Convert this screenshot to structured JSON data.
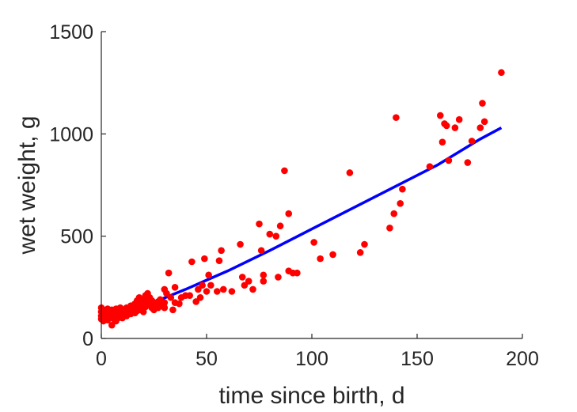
{
  "chart_data": {
    "type": "scatter",
    "xlabel": "time since birth, d",
    "ylabel": "wet weight, g",
    "xlim": [
      0,
      200
    ],
    "ylim": [
      0,
      1500
    ],
    "xticks": [
      0,
      50,
      100,
      150,
      200
    ],
    "yticks": [
      0,
      500,
      1000,
      1500
    ],
    "xtick_labels": [
      "0",
      "50",
      "100",
      "150",
      "200"
    ],
    "ytick_labels": [
      "0",
      "500",
      "1000",
      "1500"
    ],
    "grid": false,
    "box": "open",
    "series": [
      {
        "kind": "points",
        "color": "#ff0000",
        "points": [
          [
            0,
            150
          ],
          [
            0,
            130
          ],
          [
            0,
            110
          ],
          [
            0,
            95
          ],
          [
            1,
            140
          ],
          [
            1,
            120
          ],
          [
            1,
            100
          ],
          [
            1,
            85
          ],
          [
            2,
            135
          ],
          [
            2,
            115
          ],
          [
            2,
            95
          ],
          [
            3,
            145
          ],
          [
            3,
            125
          ],
          [
            3,
            105
          ],
          [
            3,
            90
          ],
          [
            4,
            130
          ],
          [
            4,
            110
          ],
          [
            4,
            100
          ],
          [
            5,
            140
          ],
          [
            5,
            120
          ],
          [
            5,
            105
          ],
          [
            5,
            65
          ],
          [
            6,
            130
          ],
          [
            6,
            115
          ],
          [
            6,
            95
          ],
          [
            7,
            145
          ],
          [
            7,
            125
          ],
          [
            7,
            110
          ],
          [
            7,
            85
          ],
          [
            8,
            135
          ],
          [
            8,
            115
          ],
          [
            8,
            100
          ],
          [
            9,
            150
          ],
          [
            9,
            130
          ],
          [
            9,
            110
          ],
          [
            10,
            140
          ],
          [
            10,
            120
          ],
          [
            10,
            100
          ],
          [
            11,
            135
          ],
          [
            11,
            115
          ],
          [
            12,
            150
          ],
          [
            12,
            125
          ],
          [
            12,
            110
          ],
          [
            13,
            145
          ],
          [
            13,
            130
          ],
          [
            14,
            160
          ],
          [
            14,
            135
          ],
          [
            14,
            120
          ],
          [
            15,
            155
          ],
          [
            15,
            140
          ],
          [
            16,
            170
          ],
          [
            16,
            145
          ],
          [
            16,
            125
          ],
          [
            17,
            185
          ],
          [
            17,
            160
          ],
          [
            17,
            135
          ],
          [
            18,
            200
          ],
          [
            18,
            165
          ],
          [
            18,
            140
          ],
          [
            19,
            175
          ],
          [
            19,
            150
          ],
          [
            20,
            190
          ],
          [
            20,
            160
          ],
          [
            20,
            130
          ],
          [
            21,
            210
          ],
          [
            21,
            180
          ],
          [
            21,
            155
          ],
          [
            22,
            220
          ],
          [
            22,
            190
          ],
          [
            22,
            165
          ],
          [
            23,
            200
          ],
          [
            23,
            170
          ],
          [
            24,
            185
          ],
          [
            24,
            150
          ],
          [
            25,
            175
          ],
          [
            25,
            140
          ],
          [
            26,
            160
          ],
          [
            27,
            180
          ],
          [
            27,
            150
          ],
          [
            28,
            190
          ],
          [
            29,
            160
          ],
          [
            30,
            240
          ],
          [
            30,
            175
          ],
          [
            30,
            150
          ],
          [
            31,
            220
          ],
          [
            32,
            320
          ],
          [
            33,
            200
          ],
          [
            34,
            140
          ],
          [
            35,
            175
          ],
          [
            35,
            250
          ],
          [
            37,
            170
          ],
          [
            38,
            200
          ],
          [
            40,
            210
          ],
          [
            42,
            210
          ],
          [
            43,
            375
          ],
          [
            45,
            180
          ],
          [
            46,
            240
          ],
          [
            47,
            200
          ],
          [
            48,
            260
          ],
          [
            49,
            390
          ],
          [
            50,
            230
          ],
          [
            51,
            310
          ],
          [
            52,
            260
          ],
          [
            55,
            230
          ],
          [
            56,
            380
          ],
          [
            57,
            430
          ],
          [
            58,
            240
          ],
          [
            62,
            230
          ],
          [
            66,
            460
          ],
          [
            67,
            300
          ],
          [
            68,
            260
          ],
          [
            70,
            280
          ],
          [
            72,
            240
          ],
          [
            75,
            560
          ],
          [
            76,
            430
          ],
          [
            77,
            310
          ],
          [
            77,
            280
          ],
          [
            80,
            510
          ],
          [
            83,
            500
          ],
          [
            84,
            300
          ],
          [
            85,
            550
          ],
          [
            87,
            820
          ],
          [
            89,
            610
          ],
          [
            89,
            330
          ],
          [
            91,
            320
          ],
          [
            93,
            320
          ],
          [
            101,
            470
          ],
          [
            104,
            390
          ],
          [
            110,
            410
          ],
          [
            118,
            810
          ],
          [
            123,
            420
          ],
          [
            125,
            460
          ],
          [
            137,
            540
          ],
          [
            139,
            610
          ],
          [
            140,
            1080
          ],
          [
            142,
            660
          ],
          [
            143,
            730
          ],
          [
            156,
            840
          ],
          [
            161,
            1090
          ],
          [
            162,
            960
          ],
          [
            163,
            1050
          ],
          [
            164,
            1040
          ],
          [
            165,
            870
          ],
          [
            168,
            1030
          ],
          [
            170,
            1070
          ],
          [
            174,
            860
          ],
          [
            176,
            965
          ],
          [
            180,
            1030
          ],
          [
            181,
            1150
          ],
          [
            182,
            1060
          ],
          [
            190,
            1300
          ]
        ]
      },
      {
        "kind": "fit-line",
        "color": "#0000ff",
        "x": [
          0,
          10,
          20,
          30,
          40,
          60,
          80,
          100,
          120,
          140,
          160,
          180,
          190
        ],
        "y": [
          115,
          135,
          162,
          198,
          240,
          330,
          430,
          535,
          640,
          745,
          850,
          975,
          1030
        ]
      }
    ]
  }
}
